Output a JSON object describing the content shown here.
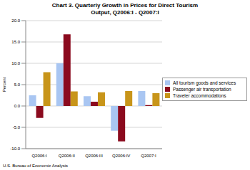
{
  "chart_data": {
    "type": "bar",
    "title": "Chart 3. Quarterly Growth in Prices for Direct Tourism Output, Q2006:I - Q2007:I",
    "y_label": "Percent",
    "annotations": [
      "U.S. Bureau of Economic Analysis"
    ],
    "categories": [
      "Q2006:I",
      "Q2006:II",
      "Q2006:III",
      "Q2006:IV",
      "Q2007:I"
    ],
    "series": [
      {
        "name": "All tourism goods and services",
        "color": "#a9c6f2",
        "values": [
          2.5,
          10.0,
          2.3,
          -5.8,
          3.5
        ]
      },
      {
        "name": "Passenger air transportation",
        "color": "#8b0a1e",
        "values": [
          -2.8,
          16.8,
          1.0,
          -8.3,
          0.2
        ]
      },
      {
        "name": "Traveler accommodations",
        "color": "#c8951a",
        "values": [
          7.9,
          3.4,
          3.2,
          3.5,
          3.0
        ]
      }
    ],
    "ylim": [
      -10,
      20
    ],
    "yticks": [
      {
        "value": -10,
        "label": "-10.0"
      },
      {
        "value": -5,
        "label": "-5.0"
      },
      {
        "value": 0,
        "label": "0.0"
      },
      {
        "value": 5,
        "label": "5.0"
      },
      {
        "value": 10,
        "label": "10.0"
      },
      {
        "value": 15,
        "label": "15.0"
      },
      {
        "value": 20,
        "label": "20.0"
      }
    ],
    "grid": true,
    "legend": "right"
  }
}
